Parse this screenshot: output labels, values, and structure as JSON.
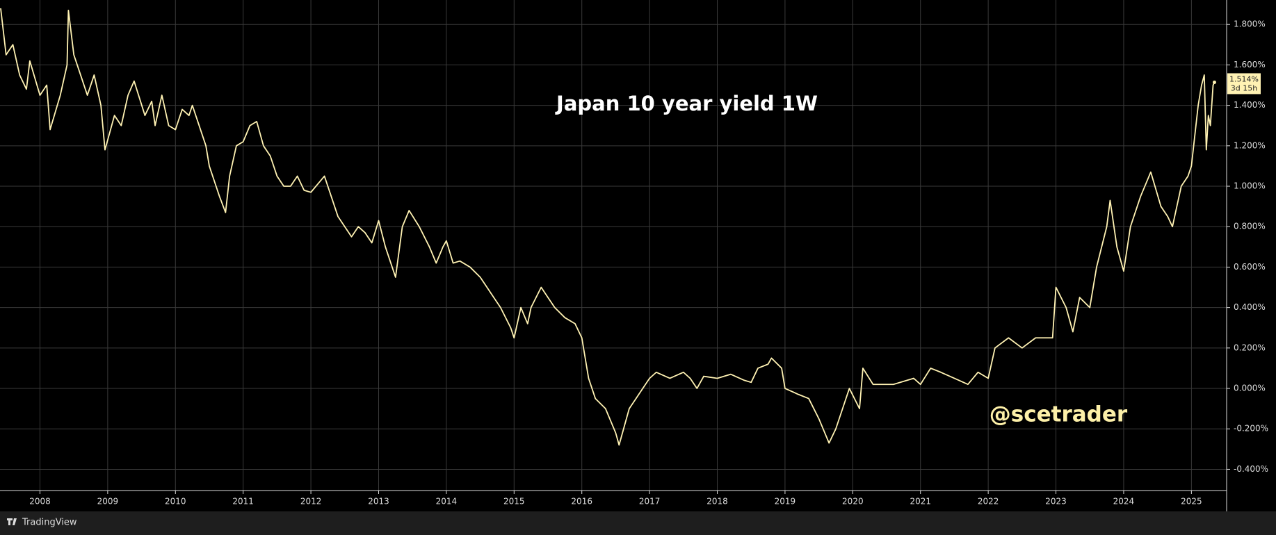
{
  "chart_data": {
    "type": "line",
    "title": "Japan 10 year yield 1W",
    "watermark": "@scetrader",
    "brand": "TradingView",
    "price_label": "1.514%",
    "countdown": "3d 15h",
    "grid": true,
    "xlim": [
      2007.41,
      2025.52
    ],
    "xticks": [
      2008,
      2009,
      2010,
      2011,
      2012,
      2013,
      2014,
      2015,
      2016,
      2017,
      2018,
      2019,
      2020,
      2021,
      2022,
      2023,
      2024,
      2025
    ],
    "ylim": [
      -0.505,
      1.921
    ],
    "yticks": [
      {
        "value": 1.8,
        "label": "1.800%"
      },
      {
        "value": 1.6,
        "label": "1.600%"
      },
      {
        "value": 1.4,
        "label": "1.400%"
      },
      {
        "value": 1.2,
        "label": "1.200%"
      },
      {
        "value": 1.0,
        "label": "1.000%"
      },
      {
        "value": 0.8,
        "label": "0.800%"
      },
      {
        "value": 0.6,
        "label": "0.600%"
      },
      {
        "value": 0.4,
        "label": "0.400%"
      },
      {
        "value": 0.2,
        "label": "0.200%"
      },
      {
        "value": 0.0,
        "label": "0.000%"
      },
      {
        "value": -0.2,
        "label": "-0.200%"
      },
      {
        "value": -0.4,
        "label": "-0.400%"
      }
    ],
    "series": [
      {
        "color": "#fff2b3",
        "x": [
          2007.42,
          2007.5,
          2007.6,
          2007.7,
          2007.8,
          2007.85,
          2008.0,
          2008.1,
          2008.15,
          2008.3,
          2008.4,
          2008.42,
          2008.5,
          2008.6,
          2008.7,
          2008.8,
          2008.9,
          2008.96,
          2009.1,
          2009.2,
          2009.3,
          2009.39,
          2009.55,
          2009.65,
          2009.7,
          2009.8,
          2009.9,
          2010.0,
          2010.1,
          2010.2,
          2010.25,
          2010.35,
          2010.45,
          2010.5,
          2010.6,
          2010.65,
          2010.74,
          2010.8,
          2010.9,
          2011.0,
          2011.1,
          2011.2,
          2011.3,
          2011.4,
          2011.5,
          2011.6,
          2011.7,
          2011.8,
          2011.9,
          2012.0,
          2012.2,
          2012.3,
          2012.4,
          2012.5,
          2012.6,
          2012.7,
          2012.8,
          2012.9,
          2013.0,
          2013.1,
          2013.2,
          2013.25,
          2013.35,
          2013.45,
          2013.6,
          2013.75,
          2013.85,
          2013.95,
          2014.0,
          2014.1,
          2014.2,
          2014.35,
          2014.5,
          2014.6,
          2014.7,
          2014.8,
          2014.95,
          2015.0,
          2015.1,
          2015.2,
          2015.25,
          2015.4,
          2015.5,
          2015.6,
          2015.75,
          2015.9,
          2016.0,
          2016.1,
          2016.2,
          2016.35,
          2016.5,
          2016.55,
          2016.7,
          2016.8,
          2016.9,
          2017.0,
          2017.1,
          2017.3,
          2017.5,
          2017.6,
          2017.7,
          2017.8,
          2018.0,
          2018.2,
          2018.4,
          2018.5,
          2018.6,
          2018.75,
          2018.8,
          2018.95,
          2019.0,
          2019.2,
          2019.35,
          2019.5,
          2019.65,
          2019.75,
          2019.85,
          2019.95,
          2020.1,
          2020.15,
          2020.3,
          2020.6,
          2020.9,
          2021.0,
          2021.15,
          2021.3,
          2021.5,
          2021.7,
          2021.85,
          2022.0,
          2022.1,
          2022.3,
          2022.5,
          2022.7,
          2022.95,
          2023.0,
          2023.15,
          2023.25,
          2023.35,
          2023.5,
          2023.6,
          2023.75,
          2023.8,
          2023.9,
          2024.0,
          2024.1,
          2024.25,
          2024.4,
          2024.55,
          2024.65,
          2024.72,
          2024.85,
          2024.95,
          2025.0,
          2025.1,
          2025.15,
          2025.19,
          2025.22,
          2025.25,
          2025.28,
          2025.32,
          2025.34
        ],
        "values": [
          1.88,
          1.65,
          1.7,
          1.55,
          1.48,
          1.62,
          1.45,
          1.5,
          1.28,
          1.45,
          1.6,
          1.87,
          1.65,
          1.55,
          1.45,
          1.55,
          1.4,
          1.18,
          1.35,
          1.3,
          1.45,
          1.52,
          1.35,
          1.42,
          1.3,
          1.45,
          1.3,
          1.28,
          1.38,
          1.35,
          1.4,
          1.3,
          1.2,
          1.1,
          1.0,
          0.95,
          0.87,
          1.05,
          1.2,
          1.22,
          1.3,
          1.32,
          1.2,
          1.15,
          1.05,
          1.0,
          1.0,
          1.05,
          0.98,
          0.97,
          1.05,
          0.95,
          0.85,
          0.8,
          0.75,
          0.8,
          0.77,
          0.72,
          0.83,
          0.7,
          0.6,
          0.55,
          0.8,
          0.88,
          0.8,
          0.7,
          0.62,
          0.7,
          0.73,
          0.62,
          0.63,
          0.6,
          0.55,
          0.5,
          0.45,
          0.4,
          0.3,
          0.25,
          0.4,
          0.32,
          0.4,
          0.5,
          0.45,
          0.4,
          0.35,
          0.32,
          0.25,
          0.05,
          -0.05,
          -0.1,
          -0.22,
          -0.28,
          -0.1,
          -0.05,
          0.0,
          0.05,
          0.08,
          0.05,
          0.08,
          0.05,
          0.0,
          0.06,
          0.05,
          0.07,
          0.04,
          0.03,
          0.1,
          0.12,
          0.15,
          0.1,
          0.0,
          -0.03,
          -0.05,
          -0.15,
          -0.27,
          -0.2,
          -0.1,
          0.0,
          -0.1,
          0.1,
          0.02,
          0.02,
          0.05,
          0.02,
          0.1,
          0.08,
          0.05,
          0.02,
          0.08,
          0.05,
          0.2,
          0.25,
          0.2,
          0.25,
          0.25,
          0.5,
          0.4,
          0.28,
          0.45,
          0.4,
          0.6,
          0.8,
          0.93,
          0.7,
          0.58,
          0.8,
          0.95,
          1.07,
          0.9,
          0.85,
          0.8,
          1.0,
          1.05,
          1.1,
          1.4,
          1.5,
          1.55,
          1.18,
          1.35,
          1.3,
          1.5,
          1.514
        ]
      }
    ]
  }
}
